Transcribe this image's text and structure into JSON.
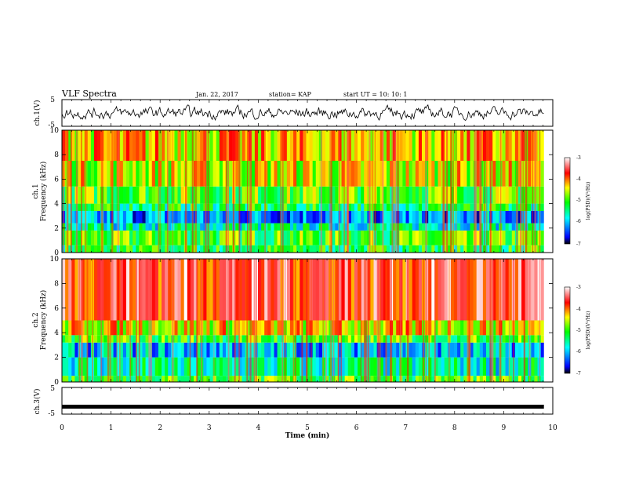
{
  "header": {
    "title": "VLF Spectra",
    "date": "Jan. 22, 2017",
    "station": "station= KAP",
    "start": "start UT =  10: 10: 1"
  },
  "chart_data": [
    {
      "type": "line",
      "id": "ch1-voltage",
      "ylabel": "ch.1(V)",
      "ylim": [
        -5,
        5
      ],
      "yticks": [
        "5",
        "-5"
      ],
      "xlim": [
        0,
        10
      ],
      "data_end_min": 9.82,
      "summary": "noisy waveform fluctuating roughly between -2 and 2 V"
    },
    {
      "type": "heatmap",
      "id": "ch1-spectrogram",
      "ylabel": "ch.1\nFrequency (kHz)",
      "ylim": [
        0,
        10
      ],
      "yticks": [
        "0",
        "2",
        "4",
        "6",
        "8",
        "10"
      ],
      "xlim": [
        0,
        10
      ],
      "data_end_min": 9.82,
      "colorbar": {
        "label": "log(PSD)(V²/Hz)",
        "range": [
          -7,
          -3
        ],
        "ticks": [
          "-3",
          "-4",
          "-5",
          "-6",
          "-7"
        ]
      },
      "bands": [
        {
          "from": 0,
          "to": 0.6,
          "level": -5.2
        },
        {
          "from": 0.6,
          "to": 1.8,
          "level": -5.0
        },
        {
          "from": 1.8,
          "to": 2.4,
          "level": -5.6
        },
        {
          "from": 2.4,
          "to": 3.4,
          "level": -6.2
        },
        {
          "from": 3.4,
          "to": 4.0,
          "level": -5.3
        },
        {
          "from": 4.0,
          "to": 5.4,
          "level": -4.9
        },
        {
          "from": 5.4,
          "to": 7.5,
          "level": -4.5
        },
        {
          "from": 7.5,
          "to": 10,
          "level": -4.3
        }
      ]
    },
    {
      "type": "heatmap",
      "id": "ch2-spectrogram",
      "ylabel": "ch.2\nFrequency (kHz)",
      "ylim": [
        0,
        10
      ],
      "yticks": [
        "0",
        "2",
        "4",
        "6",
        "8",
        "10"
      ],
      "xlim": [
        0,
        10
      ],
      "data_end_min": 9.82,
      "colorbar": {
        "label": "log(PSD)(V²/Hz)",
        "range": [
          -7,
          -3
        ],
        "ticks": [
          "-3",
          "-4",
          "-5",
          "-6",
          "-7"
        ]
      },
      "bands": [
        {
          "from": 0,
          "to": 0.5,
          "level": -5.0
        },
        {
          "from": 0.5,
          "to": 2.0,
          "level": -5.6
        },
        {
          "from": 2.0,
          "to": 3.2,
          "level": -6.0
        },
        {
          "from": 3.2,
          "to": 3.8,
          "level": -5.0
        },
        {
          "from": 3.8,
          "to": 5.0,
          "level": -4.4
        },
        {
          "from": 5.0,
          "to": 10,
          "level": -3.6
        }
      ]
    },
    {
      "type": "line",
      "id": "ch3-voltage",
      "ylabel": "ch.3(V)",
      "ylim": [
        -5,
        5
      ],
      "yticks": [
        "5",
        "-5"
      ],
      "xlim": [
        0,
        10
      ],
      "data_end_min": 9.82,
      "constant_value": -2.2,
      "xlabel": "Time (min)",
      "xticks": [
        "0",
        "1",
        "2",
        "3",
        "4",
        "5",
        "6",
        "7",
        "8",
        "9",
        "10"
      ]
    }
  ]
}
